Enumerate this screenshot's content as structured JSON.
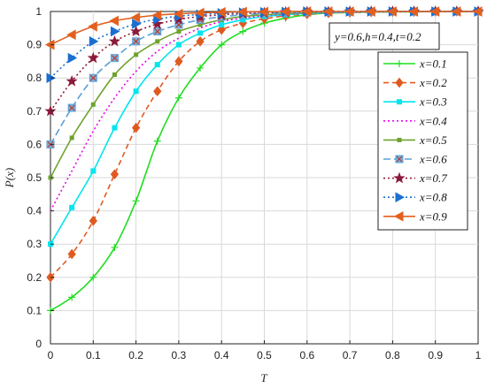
{
  "chart_data": {
    "type": "line",
    "title": "",
    "xlabel": "T",
    "ylabel": "P(x)",
    "xlim": [
      0,
      1
    ],
    "ylim": [
      0,
      1
    ],
    "xticks": [
      "0",
      "0.1",
      "0.2",
      "0.3",
      "0.4",
      "0.5",
      "0.6",
      "0.7",
      "0.8",
      "0.9",
      "1"
    ],
    "yticks": [
      "0",
      "0.1",
      "0.2",
      "0.3",
      "0.4",
      "0.5",
      "0.6",
      "0.7",
      "0.8",
      "0.9",
      "1"
    ],
    "grid": true,
    "legend_position": "right",
    "annotation": "y=0.6,h=0.4,t=0.2",
    "x": [
      0,
      0.05,
      0.1,
      0.15,
      0.2,
      0.25,
      0.3,
      0.35,
      0.4,
      0.45,
      0.5,
      0.55,
      0.6,
      0.65,
      0.7,
      0.75,
      0.8,
      0.85,
      0.9,
      0.95,
      1.0
    ],
    "series": [
      {
        "name": "x=0.1",
        "color": "#22dd22",
        "dash": "",
        "marker": "plus",
        "values": [
          0.1,
          0.14,
          0.2,
          0.29,
          0.43,
          0.61,
          0.74,
          0.83,
          0.9,
          0.94,
          0.965,
          0.98,
          0.99,
          0.995,
          0.997,
          0.998,
          0.999,
          0.999,
          1.0,
          1.0,
          1.0
        ]
      },
      {
        "name": "x=0.2",
        "color": "#e05a20",
        "dash": "6,4",
        "marker": "diamond",
        "values": [
          0.2,
          0.27,
          0.37,
          0.51,
          0.65,
          0.76,
          0.85,
          0.91,
          0.945,
          0.965,
          0.978,
          0.987,
          0.992,
          0.995,
          0.997,
          0.998,
          0.999,
          0.999,
          1.0,
          1.0,
          1.0
        ]
      },
      {
        "name": "x=0.3",
        "color": "#00e5ee",
        "dash": "",
        "marker": "square",
        "values": [
          0.3,
          0.41,
          0.52,
          0.65,
          0.76,
          0.84,
          0.9,
          0.935,
          0.96,
          0.975,
          0.985,
          0.99,
          0.994,
          0.996,
          0.998,
          0.999,
          0.999,
          1.0,
          1.0,
          1.0,
          1.0
        ]
      },
      {
        "name": "x=0.4",
        "color": "#ee00ee",
        "dash": "2,3",
        "marker": "none",
        "values": [
          0.4,
          0.52,
          0.64,
          0.74,
          0.82,
          0.88,
          0.92,
          0.95,
          0.97,
          0.98,
          0.988,
          0.992,
          0.995,
          0.997,
          0.998,
          0.999,
          1.0,
          1.0,
          1.0,
          1.0,
          1.0
        ]
      },
      {
        "name": "x=0.5",
        "color": "#6fa22f",
        "dash": "",
        "marker": "smallsquare",
        "values": [
          0.5,
          0.62,
          0.72,
          0.81,
          0.87,
          0.91,
          0.94,
          0.96,
          0.975,
          0.985,
          0.99,
          0.994,
          0.996,
          0.998,
          0.999,
          0.999,
          1.0,
          1.0,
          1.0,
          1.0,
          1.0
        ]
      },
      {
        "name": "x=0.6",
        "color": "#5aa0d8",
        "dash": "8,4",
        "marker": "xsquare",
        "values": [
          0.6,
          0.71,
          0.8,
          0.86,
          0.91,
          0.94,
          0.96,
          0.975,
          0.984,
          0.99,
          0.994,
          0.996,
          0.998,
          0.999,
          0.999,
          1.0,
          1.0,
          1.0,
          1.0,
          1.0,
          1.0
        ]
      },
      {
        "name": "x=0.7",
        "color": "#8b1a3a",
        "dash": "2,3",
        "marker": "star",
        "values": [
          0.7,
          0.79,
          0.86,
          0.91,
          0.94,
          0.962,
          0.976,
          0.985,
          0.99,
          0.994,
          0.996,
          0.998,
          0.999,
          0.999,
          1.0,
          1.0,
          1.0,
          1.0,
          1.0,
          1.0,
          1.0
        ]
      },
      {
        "name": "x=0.8",
        "color": "#1a6fd0",
        "dash": "2,3",
        "marker": "triright",
        "values": [
          0.8,
          0.86,
          0.91,
          0.94,
          0.963,
          0.977,
          0.986,
          0.991,
          0.995,
          0.997,
          0.998,
          0.999,
          1.0,
          1.0,
          1.0,
          1.0,
          1.0,
          1.0,
          1.0,
          1.0,
          1.0
        ]
      },
      {
        "name": "x=0.9",
        "color": "#e2601f",
        "dash": "",
        "marker": "trileft",
        "values": [
          0.9,
          0.93,
          0.955,
          0.972,
          0.982,
          0.989,
          0.993,
          0.996,
          0.998,
          0.999,
          0.999,
          1.0,
          1.0,
          1.0,
          1.0,
          1.0,
          1.0,
          1.0,
          1.0,
          1.0,
          1.0
        ]
      }
    ]
  }
}
